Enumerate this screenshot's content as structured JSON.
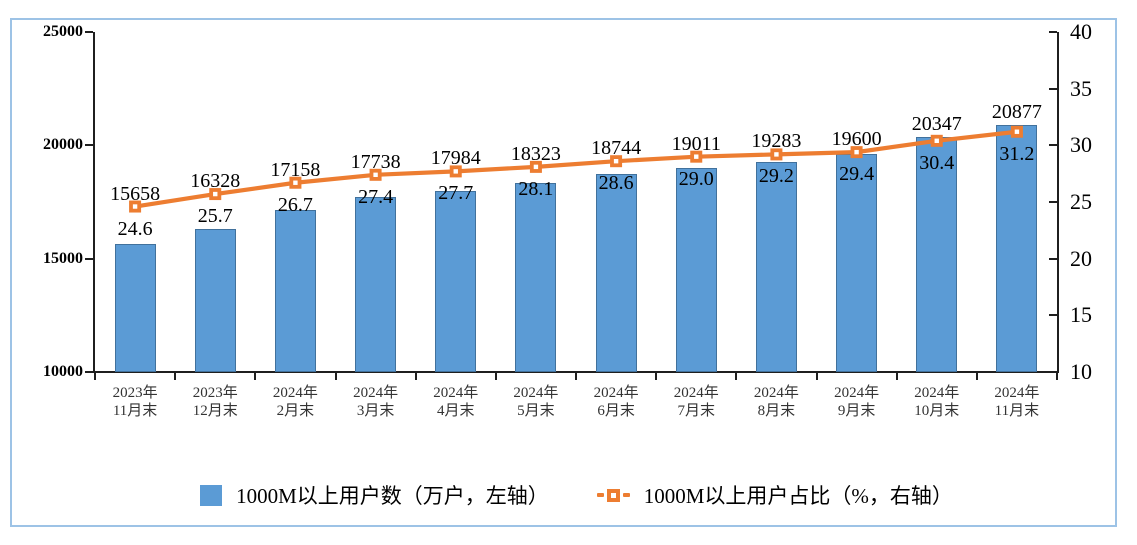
{
  "chart_data": {
    "type": "bar",
    "combo": "bar+line",
    "title": "",
    "categories": [
      "2023年\n11月末",
      "2023年\n12月末",
      "2024年\n2月末",
      "2024年\n3月末",
      "2024年\n4月末",
      "2024年\n5月末",
      "2024年\n6月末",
      "2024年\n7月末",
      "2024年\n8月末",
      "2024年\n9月末",
      "2024年\n10月末",
      "2024年\n11月末"
    ],
    "series": [
      {
        "name": "1000M以上用户数（万户，左轴）",
        "type": "bar",
        "axis": "left",
        "values": [
          15658,
          16328,
          17158,
          17738,
          17984,
          18323,
          18744,
          19011,
          19283,
          19600,
          20347,
          20877
        ],
        "labels": [
          "15658",
          "16328",
          "17158",
          "17738",
          "17984",
          "18323",
          "18744",
          "19011",
          "19283",
          "19600",
          "20347",
          "20877"
        ]
      },
      {
        "name": "1000M以上用户占比（%，右轴）",
        "type": "line",
        "axis": "right",
        "marker": "open-square",
        "values": [
          24.6,
          25.7,
          26.7,
          27.4,
          27.7,
          28.1,
          28.6,
          29.0,
          29.2,
          29.4,
          30.4,
          31.2
        ],
        "labels": [
          "24.6",
          "25.7",
          "26.7",
          "27.4",
          "27.7",
          "28.1",
          "28.6",
          "29.0",
          "29.2",
          "29.4",
          "30.4",
          "31.2"
        ]
      }
    ],
    "left_axis": {
      "min": 10000,
      "max": 25000,
      "step": 5000,
      "tick_labels": [
        "25000",
        "20000",
        "15000",
        "10000"
      ]
    },
    "right_axis": {
      "min": 10,
      "max": 40,
      "step": 5,
      "tick_labels": [
        "40",
        "35",
        "30",
        "25",
        "20",
        "15",
        "10"
      ]
    },
    "legend_position": "bottom",
    "grid": false,
    "colors": {
      "bar_fill": "#5B9BD5",
      "bar_border": "#41719C",
      "line": "#ED7D31",
      "figure_border": "#9DC3E6",
      "axis": "#1F1F1F"
    }
  }
}
